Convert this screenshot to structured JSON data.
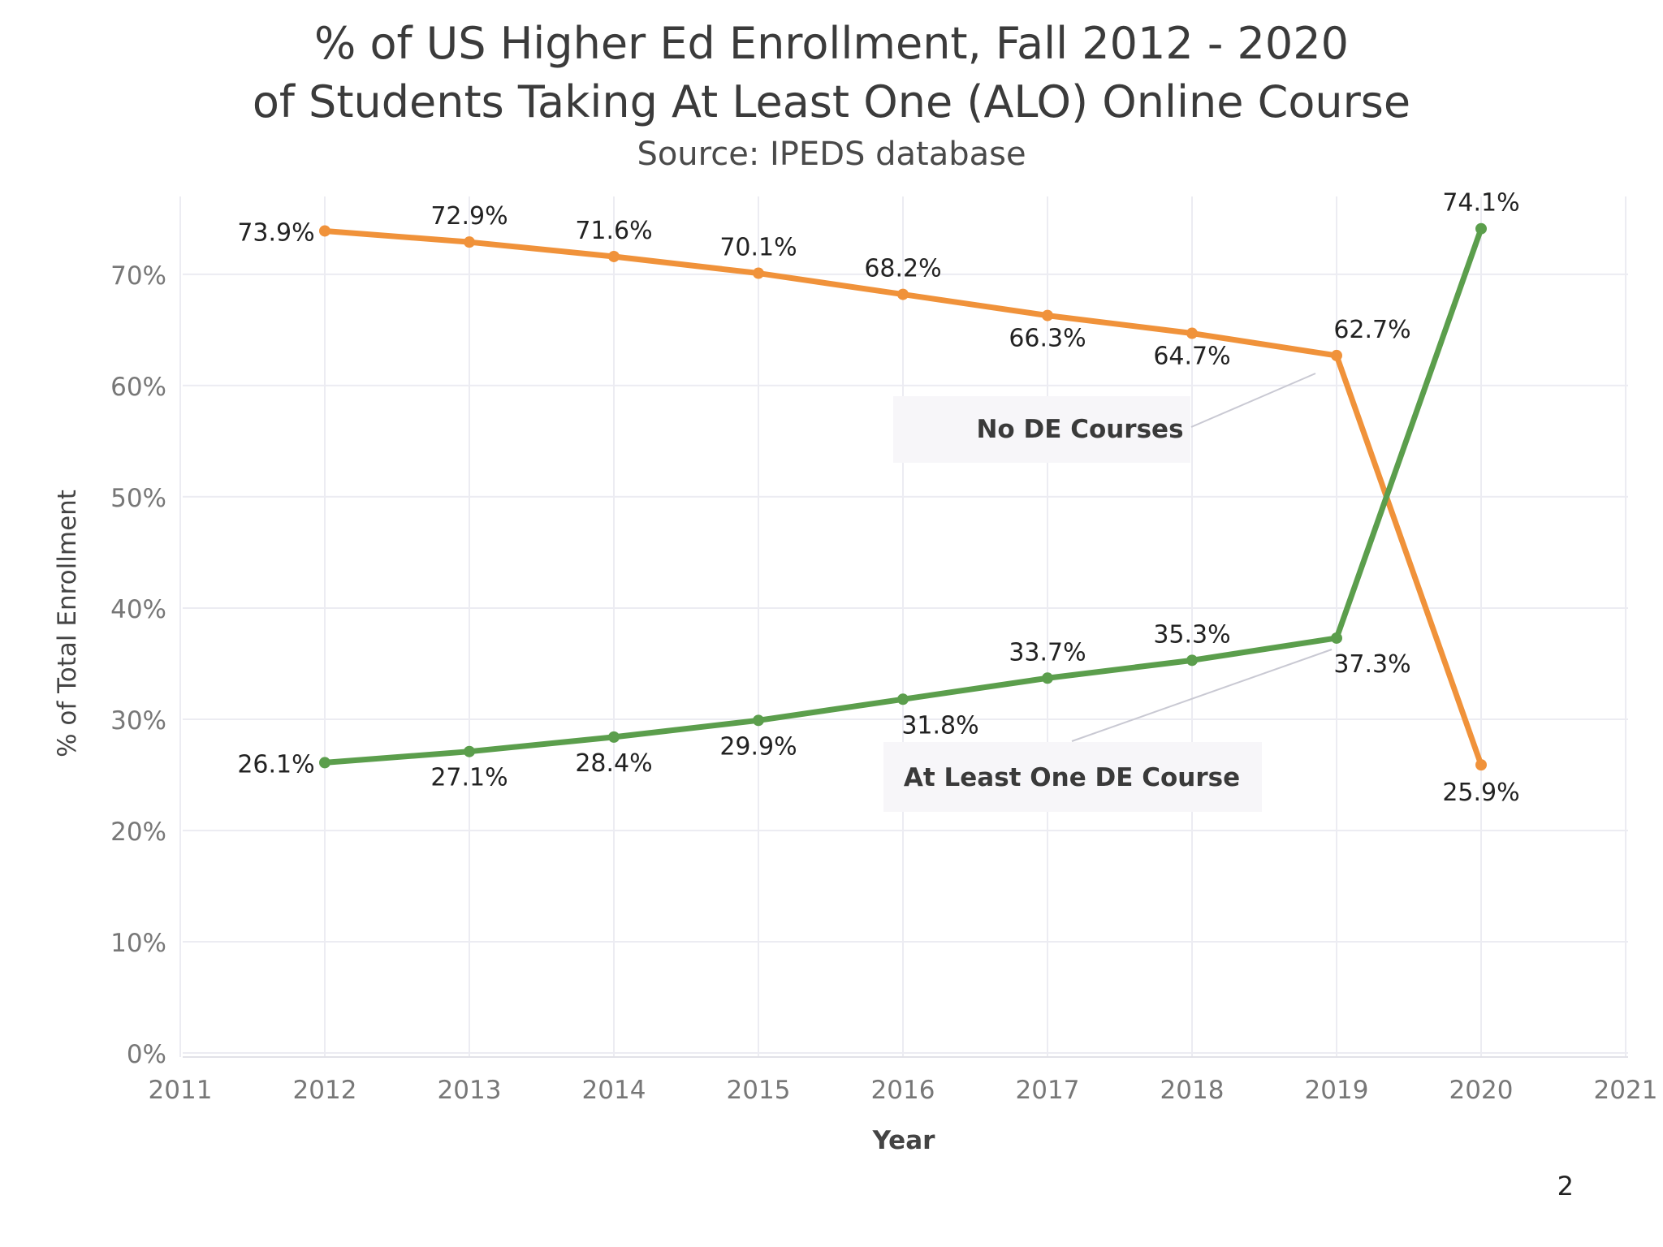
{
  "chart_data": {
    "type": "line",
    "title": "% of US Higher Ed Enrollment, Fall 2012 - 2020",
    "subtitle": "of Students Taking At Least One (ALO) Online Course",
    "source": "Source: IPEDS database",
    "xlabel": "Year",
    "ylabel": "% of Total Enrollment",
    "xlim": [
      2011,
      2021
    ],
    "ylim": [
      0,
      77
    ],
    "x_ticks": [
      "2011",
      "2012",
      "2013",
      "2014",
      "2015",
      "2016",
      "2017",
      "2018",
      "2019",
      "2020",
      "2021"
    ],
    "y_ticks": [
      {
        "v": 0,
        "label": "0%"
      },
      {
        "v": 10,
        "label": "10%"
      },
      {
        "v": 20,
        "label": "20%"
      },
      {
        "v": 30,
        "label": "30%"
      },
      {
        "v": 40,
        "label": "40%"
      },
      {
        "v": 50,
        "label": "50%"
      },
      {
        "v": 60,
        "label": "60%"
      },
      {
        "v": 70,
        "label": "70%"
      }
    ],
    "grid": true,
    "x": [
      2012,
      2013,
      2014,
      2015,
      2016,
      2017,
      2018,
      2019,
      2020
    ],
    "series": [
      {
        "name": "No DE Courses",
        "color": "#f0923a",
        "values": [
          73.9,
          72.9,
          71.6,
          70.1,
          68.2,
          66.3,
          64.7,
          62.7,
          25.9
        ],
        "labels": [
          "73.9%",
          "72.9%",
          "71.6%",
          "70.1%",
          "68.2%",
          "66.3%",
          "64.7%",
          "62.7%",
          "25.9%"
        ]
      },
      {
        "name": "At Least One DE Course",
        "color": "#5b9e4c",
        "values": [
          26.1,
          27.1,
          28.4,
          29.9,
          31.8,
          33.7,
          35.3,
          37.3,
          74.1
        ],
        "labels": [
          "26.1%",
          "27.1%",
          "28.4%",
          "29.9%",
          "31.8%",
          "33.7%",
          "35.3%",
          "37.3%",
          "74.1%"
        ]
      }
    ]
  },
  "page_number": "2"
}
